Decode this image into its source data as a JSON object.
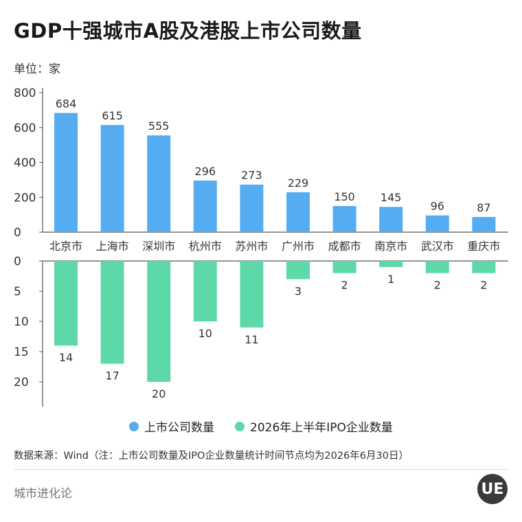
{
  "title": "GDP十强城市A股及港股上市公司数量",
  "unit": "单位：家",
  "chart_data": {
    "type": "bar",
    "categories": [
      "北京市",
      "上海市",
      "深圳市",
      "杭州市",
      "苏州市",
      "广州市",
      "成都市",
      "南京市",
      "武汉市",
      "重庆市"
    ],
    "series": [
      {
        "name": "上市公司数量",
        "values": [
          684,
          615,
          555,
          296,
          273,
          229,
          150,
          145,
          96,
          87
        ],
        "color": "#56acf0"
      },
      {
        "name": "2026年上半年IPO企业数量",
        "values": [
          14,
          17,
          20,
          10,
          11,
          3,
          2,
          1,
          2,
          2
        ],
        "color": "#5dd8a8"
      }
    ],
    "top_axis": {
      "ylim": [
        0,
        800
      ],
      "ticks": [
        "0",
        "200",
        "400",
        "600",
        "800"
      ]
    },
    "bottom_axis": {
      "ylim": [
        0,
        20
      ],
      "reversed": true,
      "ticks": [
        "0",
        "5",
        "10",
        "15",
        "20"
      ]
    },
    "grid": false,
    "legend_position": "bottom-center"
  },
  "legend": {
    "item1": "上市公司数量",
    "item2": "2026年上半年IPO企业数量"
  },
  "source": "数据来源：Wind（注：上市公司数量及IPO企业数量统计时间节点均为2026年6月30日）",
  "brand": "城市进化论",
  "logo_text": "UE"
}
